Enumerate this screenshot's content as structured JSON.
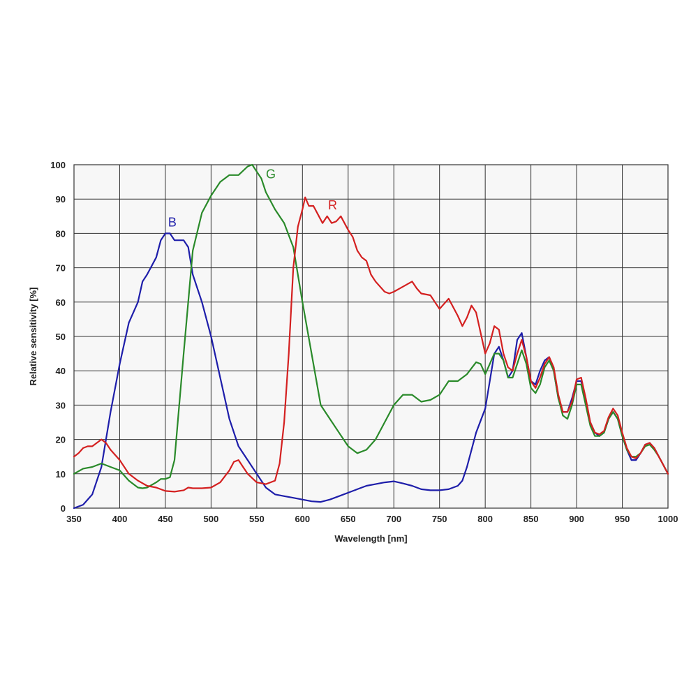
{
  "chart_data": {
    "type": "line",
    "title": "",
    "xlabel": "Wavelength [nm]",
    "ylabel": "Relative sensitivity  [%]",
    "xlim": [
      350,
      1000
    ],
    "ylim": [
      0,
      100
    ],
    "x_ticks": [
      350,
      400,
      450,
      500,
      550,
      600,
      650,
      700,
      750,
      800,
      850,
      900,
      950,
      1000
    ],
    "y_ticks": [
      0,
      10,
      20,
      30,
      40,
      50,
      60,
      70,
      80,
      90,
      100
    ],
    "grid": true,
    "legend": "none",
    "series": [
      {
        "name": "B",
        "color": "#1e1eaa",
        "label_at": [
          453,
          82
        ],
        "points": [
          [
            350,
            0
          ],
          [
            360,
            1
          ],
          [
            370,
            4
          ],
          [
            380,
            12
          ],
          [
            390,
            28
          ],
          [
            400,
            42
          ],
          [
            410,
            54
          ],
          [
            420,
            60
          ],
          [
            425,
            66
          ],
          [
            430,
            68
          ],
          [
            440,
            73
          ],
          [
            445,
            78
          ],
          [
            450,
            80
          ],
          [
            455,
            80
          ],
          [
            460,
            78
          ],
          [
            465,
            78
          ],
          [
            470,
            78
          ],
          [
            475,
            76
          ],
          [
            480,
            68
          ],
          [
            490,
            60
          ],
          [
            500,
            50
          ],
          [
            510,
            38
          ],
          [
            520,
            26
          ],
          [
            530,
            18
          ],
          [
            540,
            14
          ],
          [
            550,
            10
          ],
          [
            560,
            6
          ],
          [
            570,
            4
          ],
          [
            580,
            3.5
          ],
          [
            590,
            3
          ],
          [
            600,
            2.5
          ],
          [
            610,
            2
          ],
          [
            620,
            1.8
          ],
          [
            630,
            2.5
          ],
          [
            640,
            3.5
          ],
          [
            650,
            4.5
          ],
          [
            660,
            5.5
          ],
          [
            670,
            6.5
          ],
          [
            680,
            7
          ],
          [
            690,
            7.5
          ],
          [
            700,
            7.8
          ],
          [
            710,
            7.2
          ],
          [
            720,
            6.5
          ],
          [
            730,
            5.5
          ],
          [
            740,
            5.2
          ],
          [
            750,
            5.2
          ],
          [
            760,
            5.5
          ],
          [
            770,
            6.5
          ],
          [
            775,
            8
          ],
          [
            780,
            12
          ],
          [
            790,
            22
          ],
          [
            800,
            29
          ],
          [
            805,
            37
          ],
          [
            810,
            45
          ],
          [
            815,
            47
          ],
          [
            820,
            43
          ],
          [
            825,
            38
          ],
          [
            830,
            40
          ],
          [
            835,
            49
          ],
          [
            840,
            51
          ],
          [
            845,
            44
          ],
          [
            850,
            37
          ],
          [
            855,
            36
          ],
          [
            860,
            40
          ],
          [
            865,
            43
          ],
          [
            870,
            44
          ],
          [
            875,
            40
          ],
          [
            880,
            32
          ],
          [
            885,
            28
          ],
          [
            890,
            28
          ],
          [
            895,
            32
          ],
          [
            900,
            37
          ],
          [
            905,
            37
          ],
          [
            910,
            31
          ],
          [
            915,
            25
          ],
          [
            920,
            22
          ],
          [
            925,
            21
          ],
          [
            930,
            22
          ],
          [
            935,
            26
          ],
          [
            940,
            28
          ],
          [
            945,
            26
          ],
          [
            950,
            21
          ],
          [
            955,
            17
          ],
          [
            960,
            14
          ],
          [
            965,
            14
          ],
          [
            970,
            16
          ],
          [
            975,
            18.5
          ],
          [
            980,
            19
          ],
          [
            985,
            17.5
          ],
          [
            990,
            15
          ],
          [
            995,
            12.5
          ],
          [
            1000,
            10
          ]
        ]
      },
      {
        "name": "G",
        "color": "#2a8a2a",
        "label_at": [
          560,
          96
        ],
        "points": [
          [
            350,
            10
          ],
          [
            360,
            11.5
          ],
          [
            370,
            12
          ],
          [
            380,
            13
          ],
          [
            390,
            12
          ],
          [
            400,
            11
          ],
          [
            410,
            8
          ],
          [
            420,
            6
          ],
          [
            425,
            5.8
          ],
          [
            430,
            6
          ],
          [
            440,
            7.5
          ],
          [
            445,
            8.5
          ],
          [
            450,
            8.5
          ],
          [
            455,
            9
          ],
          [
            460,
            14
          ],
          [
            470,
            45
          ],
          [
            480,
            75
          ],
          [
            490,
            86
          ],
          [
            500,
            91
          ],
          [
            510,
            95
          ],
          [
            520,
            97
          ],
          [
            525,
            97
          ],
          [
            530,
            97
          ],
          [
            540,
            99.5
          ],
          [
            545,
            100
          ],
          [
            550,
            98
          ],
          [
            555,
            96
          ],
          [
            560,
            92
          ],
          [
            570,
            87
          ],
          [
            580,
            83
          ],
          [
            590,
            76
          ],
          [
            600,
            60
          ],
          [
            610,
            45
          ],
          [
            620,
            30
          ],
          [
            630,
            26
          ],
          [
            640,
            22
          ],
          [
            650,
            18
          ],
          [
            660,
            16
          ],
          [
            670,
            17
          ],
          [
            680,
            20
          ],
          [
            690,
            25
          ],
          [
            700,
            30
          ],
          [
            710,
            33
          ],
          [
            720,
            33
          ],
          [
            730,
            31
          ],
          [
            740,
            31.5
          ],
          [
            750,
            33
          ],
          [
            760,
            37
          ],
          [
            770,
            37
          ],
          [
            780,
            39
          ],
          [
            790,
            42.5
          ],
          [
            795,
            42
          ],
          [
            800,
            39
          ],
          [
            805,
            42
          ],
          [
            810,
            45
          ],
          [
            815,
            45
          ],
          [
            820,
            43
          ],
          [
            825,
            38
          ],
          [
            830,
            38
          ],
          [
            835,
            42
          ],
          [
            840,
            46
          ],
          [
            845,
            42
          ],
          [
            850,
            35
          ],
          [
            855,
            33.5
          ],
          [
            860,
            36
          ],
          [
            865,
            41
          ],
          [
            870,
            43
          ],
          [
            875,
            40
          ],
          [
            880,
            32
          ],
          [
            885,
            27
          ],
          [
            890,
            26
          ],
          [
            895,
            30
          ],
          [
            900,
            36
          ],
          [
            905,
            36
          ],
          [
            910,
            30
          ],
          [
            915,
            24
          ],
          [
            920,
            21
          ],
          [
            925,
            21
          ],
          [
            930,
            22
          ],
          [
            935,
            26
          ],
          [
            940,
            28
          ],
          [
            945,
            26
          ],
          [
            950,
            21
          ],
          [
            955,
            17
          ],
          [
            960,
            15
          ],
          [
            965,
            15
          ],
          [
            970,
            16
          ],
          [
            975,
            18
          ],
          [
            980,
            18.5
          ],
          [
            985,
            17
          ],
          [
            990,
            15
          ],
          [
            995,
            12.5
          ],
          [
            1000,
            10
          ]
        ]
      },
      {
        "name": "R",
        "color": "#d42020",
        "label_at": [
          628,
          87
        ],
        "points": [
          [
            350,
            15
          ],
          [
            355,
            16
          ],
          [
            360,
            17.5
          ],
          [
            365,
            18
          ],
          [
            370,
            18
          ],
          [
            375,
            19
          ],
          [
            380,
            20
          ],
          [
            385,
            19
          ],
          [
            390,
            17
          ],
          [
            400,
            14
          ],
          [
            410,
            10
          ],
          [
            420,
            8
          ],
          [
            430,
            6.5
          ],
          [
            440,
            6
          ],
          [
            450,
            5
          ],
          [
            460,
            4.8
          ],
          [
            470,
            5.2
          ],
          [
            475,
            6
          ],
          [
            480,
            5.8
          ],
          [
            490,
            5.8
          ],
          [
            500,
            6
          ],
          [
            510,
            7.5
          ],
          [
            520,
            11
          ],
          [
            525,
            13.5
          ],
          [
            530,
            14
          ],
          [
            535,
            12
          ],
          [
            540,
            10
          ],
          [
            550,
            7.5
          ],
          [
            560,
            7
          ],
          [
            570,
            8
          ],
          [
            575,
            13
          ],
          [
            580,
            25
          ],
          [
            585,
            45
          ],
          [
            590,
            70
          ],
          [
            595,
            82
          ],
          [
            600,
            87
          ],
          [
            603,
            90.5
          ],
          [
            607,
            88
          ],
          [
            612,
            88
          ],
          [
            618,
            85
          ],
          [
            622,
            83
          ],
          [
            627,
            85
          ],
          [
            632,
            83
          ],
          [
            637,
            83.5
          ],
          [
            642,
            85
          ],
          [
            650,
            81
          ],
          [
            655,
            79
          ],
          [
            660,
            75
          ],
          [
            665,
            73
          ],
          [
            670,
            72
          ],
          [
            675,
            68
          ],
          [
            680,
            66
          ],
          [
            690,
            63
          ],
          [
            695,
            62.5
          ],
          [
            700,
            63
          ],
          [
            710,
            64.5
          ],
          [
            720,
            66
          ],
          [
            725,
            64
          ],
          [
            730,
            62.5
          ],
          [
            740,
            62
          ],
          [
            745,
            60
          ],
          [
            750,
            58
          ],
          [
            760,
            61
          ],
          [
            770,
            56
          ],
          [
            775,
            53
          ],
          [
            780,
            55.5
          ],
          [
            785,
            59
          ],
          [
            790,
            57
          ],
          [
            800,
            45
          ],
          [
            805,
            48
          ],
          [
            810,
            53
          ],
          [
            815,
            52
          ],
          [
            820,
            45
          ],
          [
            825,
            41
          ],
          [
            830,
            40
          ],
          [
            835,
            45
          ],
          [
            840,
            49
          ],
          [
            845,
            44
          ],
          [
            850,
            37
          ],
          [
            855,
            35
          ],
          [
            860,
            38
          ],
          [
            865,
            42
          ],
          [
            870,
            44
          ],
          [
            875,
            41
          ],
          [
            880,
            33
          ],
          [
            885,
            28
          ],
          [
            890,
            28
          ],
          [
            895,
            31
          ],
          [
            900,
            37.5
          ],
          [
            905,
            38
          ],
          [
            910,
            32
          ],
          [
            915,
            25
          ],
          [
            920,
            22
          ],
          [
            925,
            21.5
          ],
          [
            930,
            22.5
          ],
          [
            935,
            26.5
          ],
          [
            940,
            29
          ],
          [
            945,
            27
          ],
          [
            950,
            22
          ],
          [
            955,
            17.5
          ],
          [
            960,
            15
          ],
          [
            965,
            14.5
          ],
          [
            970,
            16
          ],
          [
            975,
            18.5
          ],
          [
            980,
            19
          ],
          [
            985,
            17.5
          ],
          [
            990,
            15
          ],
          [
            995,
            12.5
          ],
          [
            1000,
            10
          ]
        ]
      }
    ]
  }
}
